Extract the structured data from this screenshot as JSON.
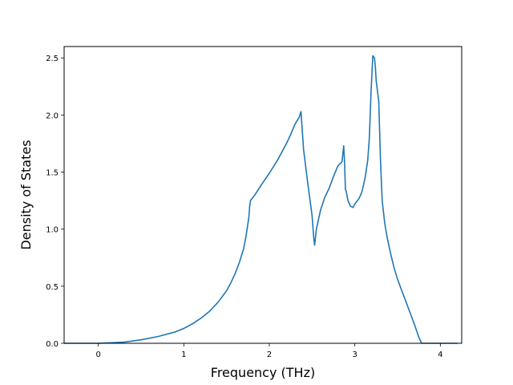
{
  "chart_data": {
    "type": "line",
    "title": "",
    "xlabel": "Frequency (THz)",
    "ylabel": "Density of States",
    "xlim": [
      -0.4,
      4.25
    ],
    "ylim": [
      0,
      2.6
    ],
    "xticks": [
      0,
      1,
      2,
      3,
      4
    ],
    "xtick_labels": [
      "0",
      "1",
      "2",
      "3",
      "4"
    ],
    "yticks": [
      0.0,
      0.5,
      1.0,
      1.5,
      2.0,
      2.5
    ],
    "ytick_labels": [
      "0.0",
      "0.5",
      "1.0",
      "1.5",
      "2.0",
      "2.5"
    ],
    "grid": false,
    "legend": "none",
    "series": [
      {
        "color": "#1f77b4",
        "x": [
          -0.4,
          0.0,
          0.15,
          0.3,
          0.5,
          0.7,
          0.9,
          1.0,
          1.1,
          1.2,
          1.3,
          1.4,
          1.5,
          1.55,
          1.6,
          1.65,
          1.7,
          1.73,
          1.76,
          1.77,
          1.78,
          1.8,
          1.84,
          1.9,
          2.0,
          2.1,
          2.2,
          2.25,
          2.3,
          2.35,
          2.37,
          2.4,
          2.45,
          2.5,
          2.52,
          2.53,
          2.55,
          2.6,
          2.65,
          2.7,
          2.75,
          2.8,
          2.82,
          2.85,
          2.87,
          2.88,
          2.89,
          2.9,
          2.92,
          2.95,
          2.98,
          3.0,
          3.05,
          3.08,
          3.1,
          3.12,
          3.15,
          3.17,
          3.19,
          3.21,
          3.22,
          3.23,
          3.24,
          3.25,
          3.28,
          3.3,
          3.32,
          3.35,
          3.38,
          3.42,
          3.46,
          3.5,
          3.55,
          3.6,
          3.65,
          3.7,
          3.75,
          3.78,
          3.8,
          3.83,
          3.85,
          4.0,
          4.2
        ],
        "y": [
          0.0,
          0.0,
          0.005,
          0.01,
          0.03,
          0.06,
          0.1,
          0.13,
          0.17,
          0.22,
          0.28,
          0.36,
          0.46,
          0.53,
          0.61,
          0.71,
          0.83,
          0.95,
          1.1,
          1.2,
          1.25,
          1.27,
          1.31,
          1.38,
          1.49,
          1.61,
          1.75,
          1.83,
          1.92,
          1.98,
          2.03,
          1.7,
          1.4,
          1.12,
          0.92,
          0.86,
          1.0,
          1.17,
          1.28,
          1.36,
          1.46,
          1.55,
          1.57,
          1.59,
          1.73,
          1.58,
          1.35,
          1.33,
          1.25,
          1.2,
          1.19,
          1.22,
          1.27,
          1.32,
          1.38,
          1.45,
          1.6,
          1.8,
          2.2,
          2.52,
          2.51,
          2.5,
          2.42,
          2.3,
          2.12,
          1.6,
          1.25,
          1.05,
          0.92,
          0.78,
          0.66,
          0.56,
          0.46,
          0.36,
          0.26,
          0.16,
          0.05,
          0.0,
          0.0,
          0.0,
          0.0,
          0.0,
          0.0
        ]
      }
    ]
  }
}
